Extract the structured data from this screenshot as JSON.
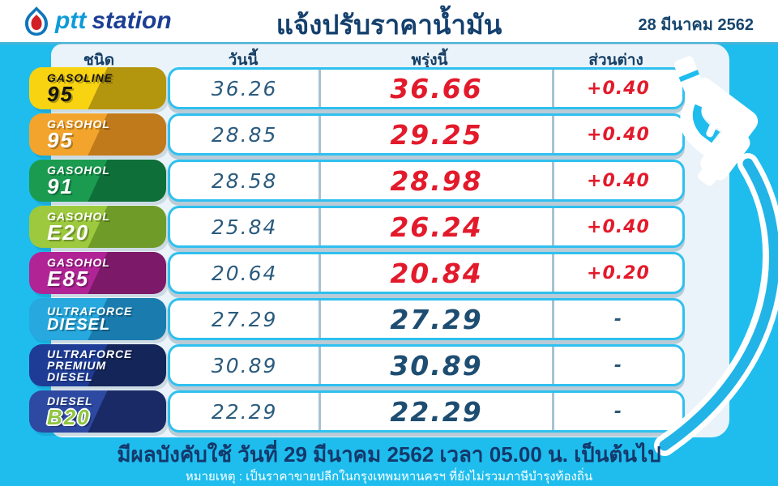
{
  "header": {
    "brand_ptt": "ptt",
    "brand_station": "station",
    "title": "แจ้งปรับราคาน้ำมัน",
    "date": "28 มีนาคม 2562"
  },
  "table": {
    "columns": [
      "ชนิด",
      "วันนี้",
      "พรุ่งนี้",
      "ส่วนต่าง"
    ],
    "rows": [
      {
        "fuel_lines": [
          "GASOLINE",
          "95"
        ],
        "today": "36.26",
        "tomorrow": "36.66",
        "diff": "+0.40",
        "changed": true,
        "badge_color": "#f8d312",
        "badge_shade": "#b4950e",
        "badge_text": "#141414"
      },
      {
        "fuel_lines": [
          "GASOHOL",
          "95"
        ],
        "today": "28.85",
        "tomorrow": "29.25",
        "diff": "+0.40",
        "changed": true,
        "badge_color": "#f2a42c",
        "badge_shade": "#c0791b",
        "badge_text": "#ffffff"
      },
      {
        "fuel_lines": [
          "GASOHOL",
          "91"
        ],
        "today": "28.58",
        "tomorrow": "28.98",
        "diff": "+0.40",
        "changed": true,
        "badge_color": "#1a9b50",
        "badge_shade": "#0e6f38",
        "badge_text": "#ffffff"
      },
      {
        "fuel_lines": [
          "GASOHOL",
          "E20"
        ],
        "today": "25.84",
        "tomorrow": "26.24",
        "diff": "+0.40",
        "changed": true,
        "badge_color": "#9cc93d",
        "badge_shade": "#6f9b28",
        "badge_text": "#ffffff"
      },
      {
        "fuel_lines": [
          "GASOHOL",
          "E85"
        ],
        "today": "20.64",
        "tomorrow": "20.84",
        "diff": "+0.20",
        "changed": true,
        "badge_color": "#b02496",
        "badge_shade": "#7c1968",
        "badge_text": "#ffffff"
      },
      {
        "fuel_lines": [
          "ULTRAFORCE",
          "DIESEL"
        ],
        "today": "27.29",
        "tomorrow": "27.29",
        "diff": "-",
        "changed": false,
        "badge_color": "#27a8de",
        "badge_shade": "#1a7cae",
        "badge_text": "#ffffff"
      },
      {
        "fuel_lines": [
          "ULTRAFORCE",
          "PREMIUM",
          "DIESEL"
        ],
        "today": "30.89",
        "tomorrow": "30.89",
        "diff": "-",
        "changed": false,
        "badge_color": "#1e3c96",
        "badge_shade": "#132559",
        "badge_text": "#ffffff"
      },
      {
        "fuel_lines": [
          "DIESEL",
          "B20"
        ],
        "today": "22.29",
        "tomorrow": "22.29",
        "diff": "-",
        "changed": false,
        "badge_color": "#2d49a1",
        "badge_shade": "#1a2a66",
        "badge_text": "#ffffff",
        "accent_line": 1,
        "accent_color": "#8dc63f"
      }
    ]
  },
  "footer": {
    "effective": "มีผลบังคับใช้ วันที่ 29 มีนาคม 2562 เวลา 05.00 น. เป็นต้นไป",
    "note": "หมายเหตุ : เป็นราคาขายปลีกในกรุงเทพมหานครฯ ที่ยังไม่รวมภาษีบำรุงท้องถิ่น"
  },
  "colors": {
    "background": "#1ebdee",
    "panel": "#e9f3f9",
    "price_up_red": "#e31a2b",
    "price_navy": "#1e4d72",
    "header_navy": "#14406e"
  },
  "icons": {
    "logo_flame": "ptt-flame-icon",
    "nozzle": "fuel-nozzle-icon"
  }
}
